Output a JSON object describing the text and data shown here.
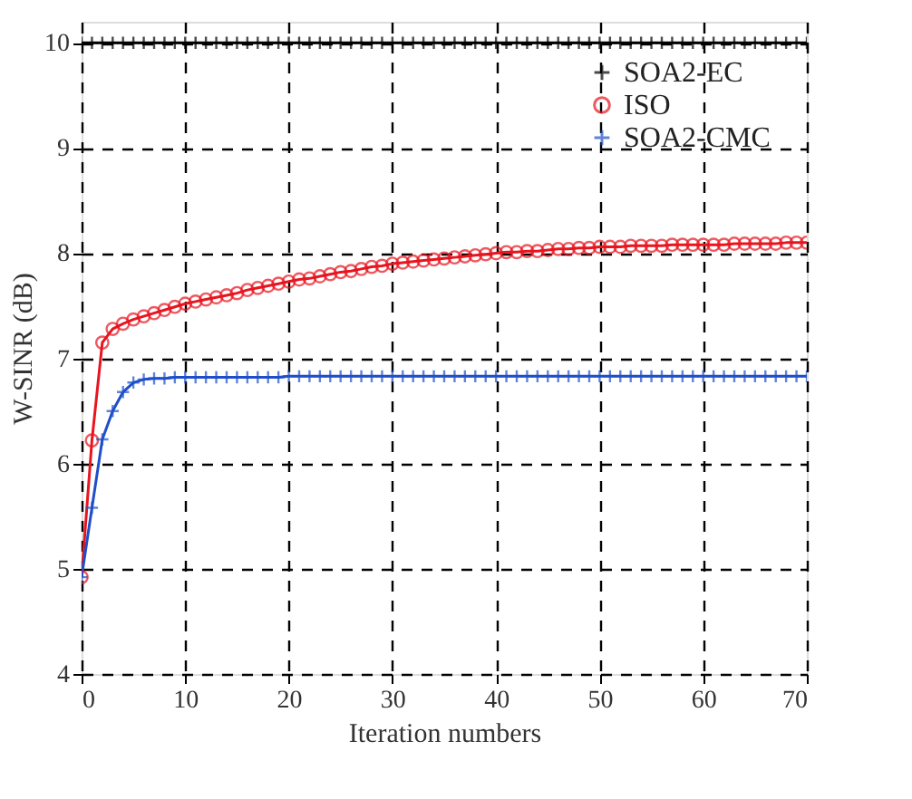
{
  "chart_data": {
    "type": "line",
    "xlabel": "Iteration numbers",
    "ylabel": "W-SINR (dB)",
    "x": [
      0,
      1,
      2,
      3,
      4,
      5,
      6,
      7,
      8,
      9,
      10,
      11,
      12,
      13,
      14,
      15,
      16,
      17,
      18,
      19,
      20,
      21,
      22,
      23,
      24,
      25,
      26,
      27,
      28,
      29,
      30,
      31,
      32,
      33,
      34,
      35,
      36,
      37,
      38,
      39,
      40,
      41,
      42,
      43,
      44,
      45,
      46,
      47,
      48,
      49,
      50,
      51,
      52,
      53,
      54,
      55,
      56,
      57,
      58,
      59,
      60,
      61,
      62,
      63,
      64,
      65,
      66,
      67,
      68,
      69,
      70
    ],
    "series": [
      {
        "name": "SOA2-EC",
        "color": "#000000",
        "marker": "cross",
        "values": [
          10,
          10,
          10,
          10,
          10,
          10,
          10,
          10,
          10,
          10,
          10,
          10,
          10,
          10,
          10,
          10,
          10,
          10,
          10,
          10,
          10,
          10,
          10,
          10,
          10,
          10,
          10,
          10,
          10,
          10,
          10,
          10,
          10,
          10,
          10,
          10,
          10,
          10,
          10,
          10,
          10,
          10,
          10,
          10,
          10,
          10,
          10,
          10,
          10,
          10,
          10,
          10,
          10,
          10,
          10,
          10,
          10,
          10,
          10,
          10,
          10,
          10,
          10,
          10,
          10,
          10,
          10,
          10,
          10,
          10,
          10
        ]
      },
      {
        "name": "ISO",
        "color": "#e8141e",
        "marker": "circle",
        "values": [
          4.92,
          6.22,
          7.15,
          7.28,
          7.33,
          7.37,
          7.4,
          7.43,
          7.46,
          7.49,
          7.52,
          7.54,
          7.56,
          7.58,
          7.6,
          7.62,
          7.65,
          7.67,
          7.69,
          7.71,
          7.73,
          7.75,
          7.76,
          7.78,
          7.8,
          7.82,
          7.83,
          7.85,
          7.87,
          7.88,
          7.9,
          7.91,
          7.92,
          7.93,
          7.94,
          7.95,
          7.96,
          7.97,
          7.98,
          7.99,
          8.0,
          8.01,
          8.01,
          8.02,
          8.02,
          8.03,
          8.04,
          8.04,
          8.05,
          8.05,
          8.06,
          8.06,
          8.06,
          8.07,
          8.07,
          8.07,
          8.07,
          8.08,
          8.08,
          8.08,
          8.08,
          8.08,
          8.08,
          8.09,
          8.09,
          8.09,
          8.09,
          8.09,
          8.1,
          8.1,
          8.1
        ]
      },
      {
        "name": "SOA2-CMC",
        "color": "#1f4fc8",
        "marker": "cross",
        "values": [
          4.92,
          5.58,
          6.23,
          6.5,
          6.68,
          6.77,
          6.8,
          6.81,
          6.81,
          6.82,
          6.82,
          6.82,
          6.82,
          6.82,
          6.82,
          6.82,
          6.82,
          6.82,
          6.82,
          6.82,
          6.83,
          6.83,
          6.83,
          6.83,
          6.83,
          6.83,
          6.83,
          6.83,
          6.83,
          6.83,
          6.83,
          6.83,
          6.83,
          6.83,
          6.83,
          6.83,
          6.83,
          6.83,
          6.83,
          6.83,
          6.83,
          6.83,
          6.83,
          6.83,
          6.83,
          6.83,
          6.83,
          6.83,
          6.83,
          6.83,
          6.83,
          6.83,
          6.83,
          6.83,
          6.83,
          6.83,
          6.83,
          6.83,
          6.83,
          6.83,
          6.83,
          6.83,
          6.83,
          6.83,
          6.83,
          6.83,
          6.83,
          6.83,
          6.83,
          6.83,
          6.83
        ]
      }
    ],
    "xlim": [
      0,
      70
    ],
    "xticks": [
      0,
      10,
      20,
      30,
      40,
      50,
      60,
      70
    ],
    "ylim": [
      4,
      10.2
    ],
    "yticks": [
      4,
      5,
      6,
      7,
      8,
      9,
      10
    ],
    "grid": true,
    "legend": "top right",
    "line_style": "solid"
  }
}
